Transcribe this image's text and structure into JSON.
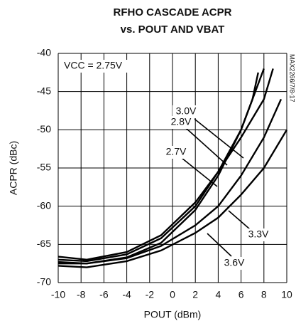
{
  "chart_data": {
    "type": "line",
    "title": [
      "RFHO CASCADE ACPR",
      "vs. POUT AND VBAT"
    ],
    "x_label": "POUT (dBm)",
    "y_label": "ACPR (dBc)",
    "annotation": "VCC = 2.75V",
    "side_note": "MAX2266/7/8-17",
    "xlim": [
      -10,
      10
    ],
    "xticks": [
      -10,
      -8,
      -6,
      -4,
      -2,
      0,
      2,
      4,
      6,
      8,
      10
    ],
    "ylim": [
      -70,
      -40
    ],
    "yticks": [
      -40,
      -45,
      -50,
      -55,
      -60,
      -65,
      -70
    ],
    "grid": true,
    "series": [
      {
        "name": "2.7V",
        "color": "#000000",
        "x": [
          -10,
          -7.5,
          -4,
          -1,
          2,
          4,
          6,
          7,
          7.5
        ],
        "values": [
          -67.3,
          -67.5,
          -66.7,
          -64.8,
          -60.5,
          -56,
          -50,
          -46,
          -42.5
        ]
      },
      {
        "name": "2.8V",
        "color": "#000000",
        "x": [
          -10,
          -7.5,
          -4,
          -1,
          2,
          4,
          6,
          8
        ],
        "values": [
          -67.0,
          -67.2,
          -66.3,
          -64.2,
          -60,
          -55.5,
          -50,
          -42
        ]
      },
      {
        "name": "3.0V",
        "color": "#000000",
        "x": [
          -10,
          -7.5,
          -4,
          -1,
          2,
          4,
          6,
          8,
          8.8
        ],
        "values": [
          -66.6,
          -67.0,
          -66,
          -63.8,
          -59.5,
          -55.5,
          -51,
          -46,
          -42
        ]
      },
      {
        "name": "3.3V",
        "color": "#000000",
        "x": [
          -10,
          -7.5,
          -4,
          -1,
          2,
          4,
          6,
          8,
          9.5
        ],
        "values": [
          -67.5,
          -67.5,
          -66.8,
          -65.2,
          -62.5,
          -60,
          -56,
          -51,
          -46
        ]
      },
      {
        "name": "3.6V",
        "color": "#000000",
        "x": [
          -10,
          -7.5,
          -4,
          -1,
          2,
          4,
          6,
          8,
          10
        ],
        "values": [
          -67.8,
          -68,
          -67.2,
          -65.8,
          -63.5,
          -61.5,
          -58.5,
          -55,
          -50
        ]
      }
    ]
  }
}
